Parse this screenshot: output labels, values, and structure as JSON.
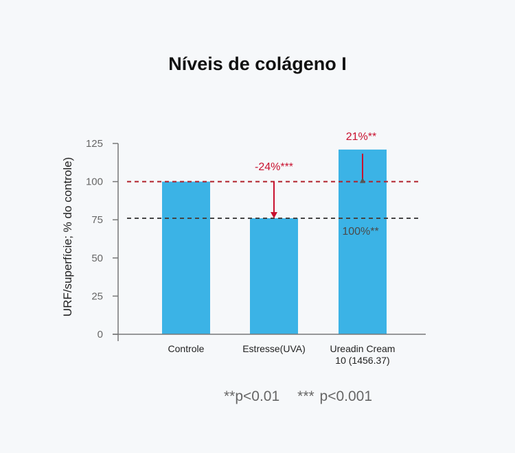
{
  "chart_data": {
    "type": "bar",
    "title": "Níveis de colágeno I",
    "ylabel": "URF/superfície; % do controle)",
    "xlabel": "",
    "ylim": [
      0,
      125
    ],
    "yticks": [
      0,
      25,
      50,
      75,
      100,
      125
    ],
    "categories": [
      "Controle",
      "Estresse(UVA)",
      "Ureadin Cream 10 (1456.37)"
    ],
    "category_lines": [
      [
        "Controle"
      ],
      [
        "Estresse(UVA)"
      ],
      [
        "Ureadin Cream",
        "10 (1456.37)"
      ]
    ],
    "values": [
      100,
      76,
      121
    ],
    "bar_color": "#3bb3e6",
    "reference_lines": [
      {
        "value": 100,
        "color": "#b0202a"
      },
      {
        "value": 76,
        "color": "#444444"
      }
    ],
    "annotations": [
      {
        "text": "-24%***",
        "color": "#c8102e",
        "category": "Estresse(UVA)"
      },
      {
        "text": "21%**",
        "color": "#c8102e",
        "category": "Ureadin Cream 10 (1456.37)"
      },
      {
        "text": "100%**",
        "color": "#4a4a4a",
        "category": "Ureadin Cream 10 (1456.37)"
      }
    ],
    "grid": false
  },
  "footnotes": [
    "**p<0.01",
    "*** p<0.001"
  ]
}
